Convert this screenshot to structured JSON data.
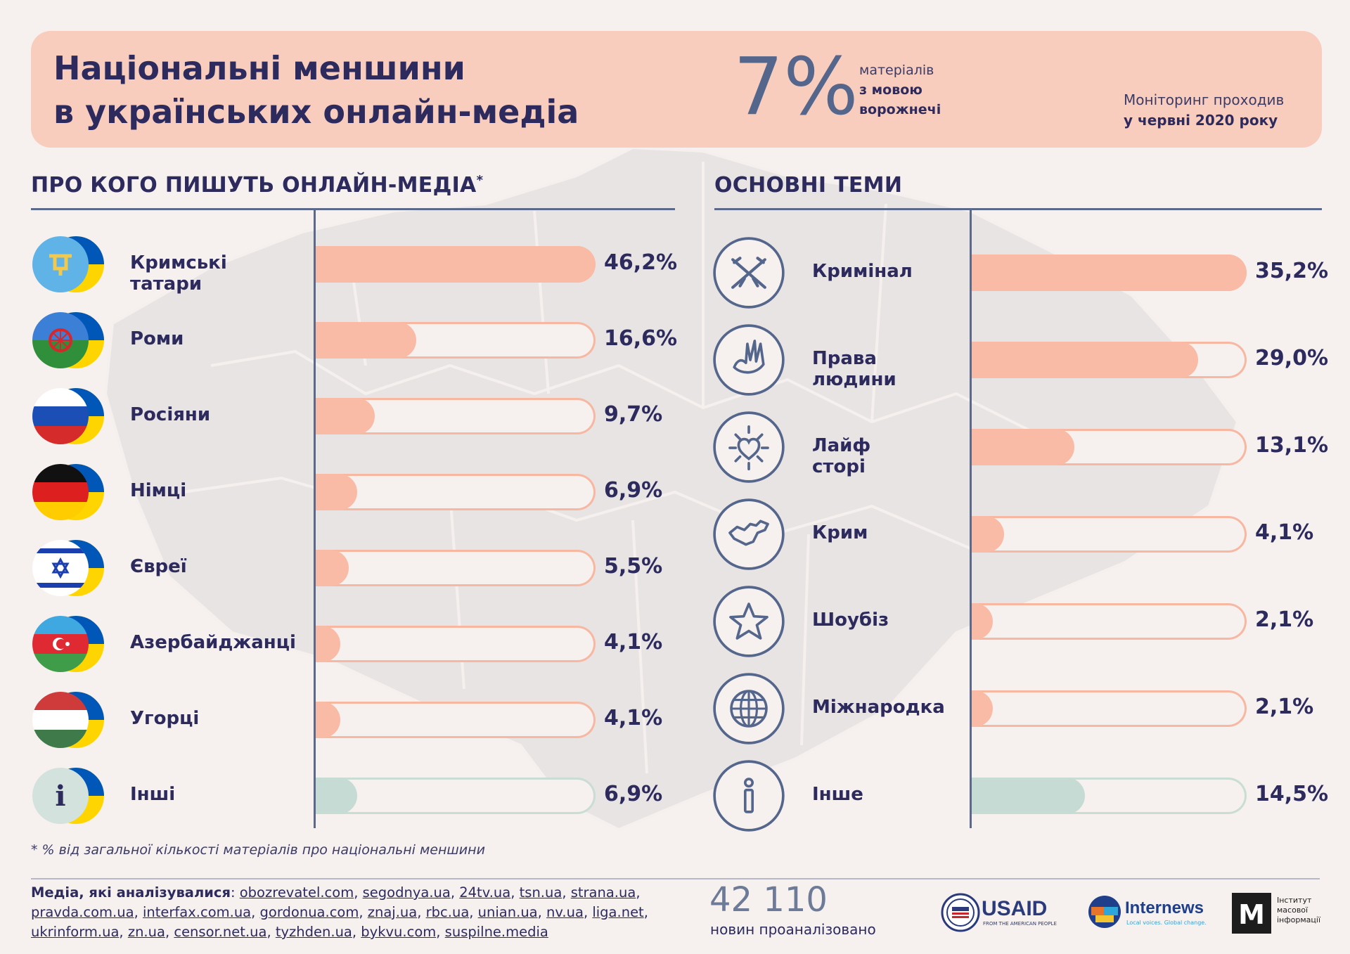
{
  "header": {
    "title_line1": "Національні меншини",
    "title_line2": "в українських онлайн-медіа",
    "big_percent": "7%",
    "percent_note_line1": "матеріалів",
    "percent_note_line2": "з мовою",
    "percent_note_line3": "ворожнечі",
    "monitor_line1": "Моніторинг проходив",
    "monitor_line2": "у червні 2020 року"
  },
  "sections": {
    "left_title": "ПРО КОГО ПИШУТЬ ОНЛАЙН-МЕДІА",
    "left_title_mark": "*",
    "right_title": "ОСНОВНІ ТЕМИ"
  },
  "chart_data": [
    {
      "type": "bar",
      "title": "ПРО КОГО ПИШУТЬ ОНЛАЙН-МЕДІА*",
      "categories": [
        "Кримські татари",
        "Роми",
        "Росіяни",
        "Німці",
        "Євреї",
        "Азербайджанці",
        "Угорці",
        "Інші"
      ],
      "values": [
        46.2,
        16.6,
        9.7,
        6.9,
        5.5,
        4.1,
        4.1,
        6.9
      ],
      "value_labels": [
        "46,2%",
        "16,6%",
        "9,7%",
        "6,9%",
        "5,5%",
        "4,1%",
        "4,1%",
        "6,9%"
      ],
      "icons": [
        "crimean-tatar-flag-icon",
        "roma-flag-icon",
        "russia-flag-icon",
        "germany-flag-icon",
        "israel-flag-icon",
        "azerbaijan-flag-icon",
        "hungary-flag-icon",
        "info-icon"
      ],
      "ylim": [
        0,
        46.2
      ]
    },
    {
      "type": "bar",
      "title": "ОСНОВНІ ТЕМИ",
      "categories": [
        "Кримінал",
        "Права людини",
        "Лайф сторі",
        "Крим",
        "Шоубіз",
        "Міжнародка",
        "Інше"
      ],
      "values": [
        35.2,
        29.0,
        13.1,
        4.1,
        2.1,
        2.1,
        14.5
      ],
      "value_labels": [
        "35,2%",
        "29,0%",
        "13,1%",
        "4,1%",
        "2,1%",
        "2,1%",
        "14,5%"
      ],
      "icons": [
        "crossed-rifles-icon",
        "dove-hand-icon",
        "heart-sun-icon",
        "crimea-map-icon",
        "star-icon",
        "globe-icon",
        "info-icon"
      ],
      "ylim": [
        0,
        35.2
      ]
    }
  ],
  "colors": {
    "bar_fill": "#f9bba6",
    "bar_outline": "#f7b7a1",
    "other_fill": "#c5dbd3",
    "text": "#2d2a5e",
    "header_bg": "#f9cdbd",
    "rule": "#5b6a8a"
  },
  "footnote": "* % від загальної кількості матеріалів про національні меншини",
  "media": {
    "lead": "Медіа, які аналізувалися",
    "sites": [
      "obozrevatel.com",
      "segodnya.ua",
      "24tv.ua",
      "tsn.ua",
      "strana.ua",
      "pravda.com.ua",
      "interfax.com.ua",
      "gordonua.com",
      "znaj.ua",
      "rbc.ua",
      "unian.ua",
      "nv.ua",
      "liga.net",
      "ukrinform.ua",
      "zn.ua",
      "censor.net.ua",
      "tyzhden.ua",
      "bykvu.com",
      "suspilne.media"
    ]
  },
  "count": {
    "number": "42 110",
    "label": "новин проаналізовано"
  },
  "logos": {
    "usaid_name": "USAID",
    "usaid_tagline": "FROM THE AMERICAN PEOPLE",
    "internews_name": "Internews",
    "internews_tagline": "Local voices. Global change.",
    "imi_letter": "M",
    "imi_line1": "Інститут",
    "imi_line2": "масової",
    "imi_line3": "інформації"
  }
}
